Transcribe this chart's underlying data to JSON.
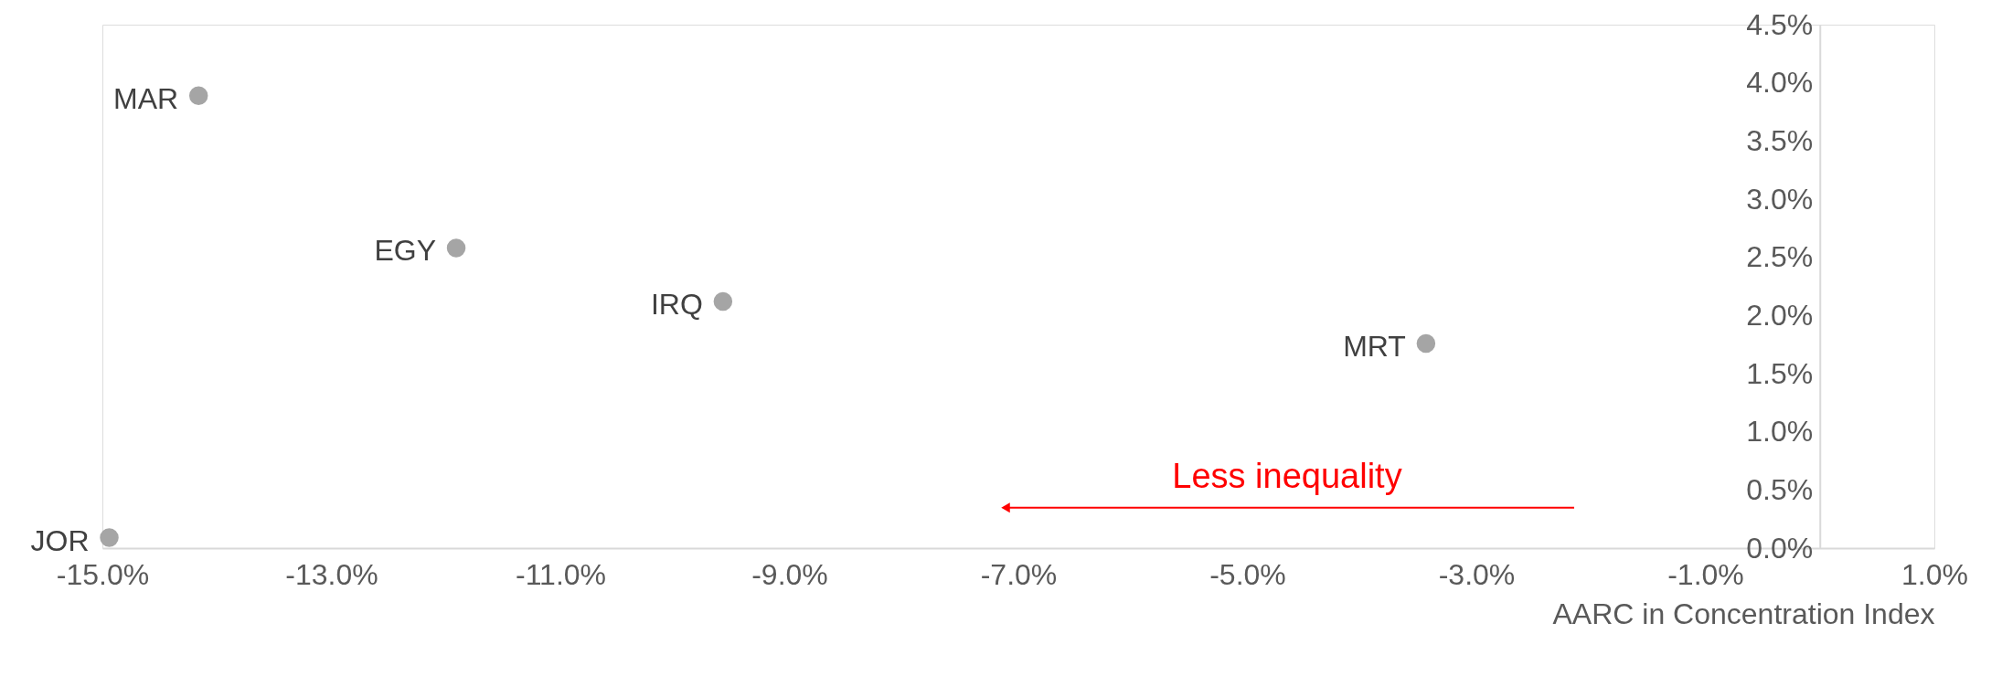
{
  "chart_data": {
    "type": "scatter",
    "xlabel": "AARC in Concentration Index",
    "x": [
      -14.16,
      -11.91,
      -9.58,
      -3.44,
      -14.94
    ],
    "series": [
      {
        "color": "#a5a5a5",
        "values": [
          3.89,
          2.58,
          2.12,
          1.76,
          0.09
        ]
      }
    ],
    "marker": "circle",
    "annotations": [
      {
        "text": "MAR",
        "x": -14.16,
        "y": 3.89
      },
      {
        "text": "EGY",
        "x": -11.91,
        "y": 2.58
      },
      {
        "text": "IRQ",
        "x": -9.58,
        "y": 2.12
      },
      {
        "text": "MRT",
        "x": -3.44,
        "y": 1.76
      },
      {
        "text": "JOR",
        "x": -14.94,
        "y": 0.09
      },
      "Less inequality"
    ],
    "xlim": [
      -15,
      1
    ],
    "ylim": [
      0,
      4.5
    ],
    "xticks": [
      {
        "value": -15,
        "label": "-15.0%"
      },
      {
        "value": -13,
        "label": "-13.0%"
      },
      {
        "value": -11,
        "label": "-11.0%"
      },
      {
        "value": -9,
        "label": "-9.0%"
      },
      {
        "value": -7,
        "label": "-7.0%"
      },
      {
        "value": -5,
        "label": "-5.0%"
      },
      {
        "value": -3,
        "label": "-3.0%"
      },
      {
        "value": -1,
        "label": "-1.0%"
      },
      {
        "value": 1,
        "label": "1.0%"
      }
    ],
    "yticks": [
      {
        "value": 0,
        "label": "0.0%"
      },
      {
        "value": 0.5,
        "label": "0.5%"
      },
      {
        "value": 1,
        "label": "1.0%"
      },
      {
        "value": 1.5,
        "label": "1.5%"
      },
      {
        "value": 2,
        "label": "2.0%"
      },
      {
        "value": 2.5,
        "label": "2.5%"
      },
      {
        "value": 3,
        "label": "3.0%"
      },
      {
        "value": 3.5,
        "label": "3.5%"
      },
      {
        "value": 4,
        "label": "4.0%"
      },
      {
        "value": 4.5,
        "label": "4.5%"
      }
    ],
    "grid": false
  }
}
